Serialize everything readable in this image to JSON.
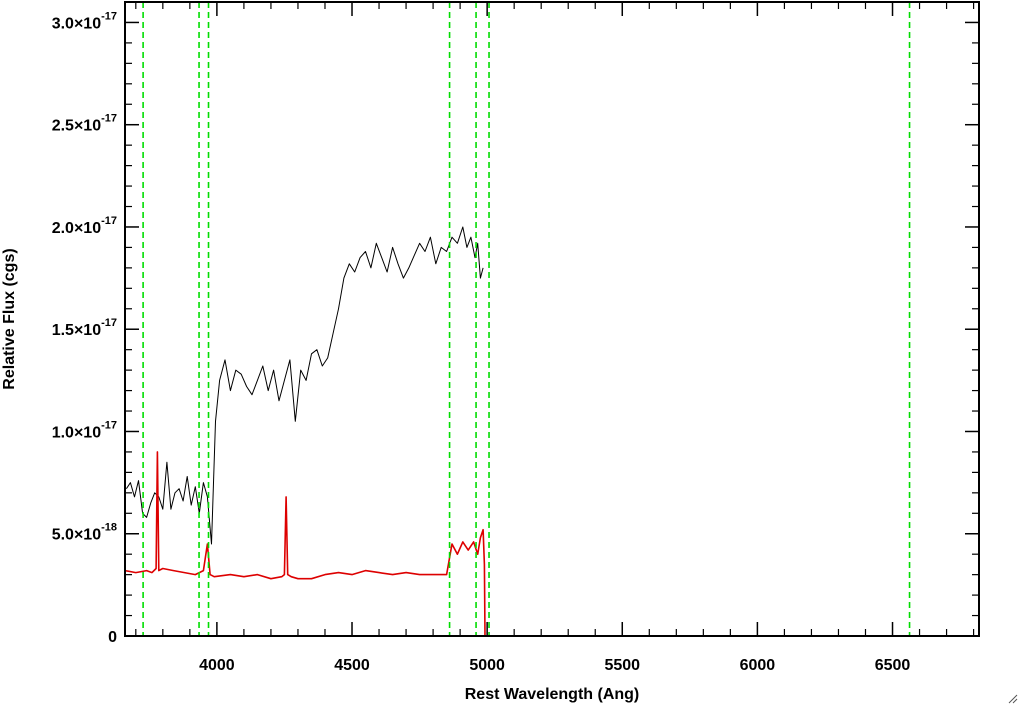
{
  "chart_data": {
    "type": "line",
    "xlabel": "Rest Wavelength (Ang)",
    "ylabel": "Relative Flux (cgs)",
    "xlim": [
      3660,
      6820
    ],
    "ylim": [
      0,
      3.1e-17
    ],
    "x_ticks": [
      {
        "value": 4000,
        "label": "4000"
      },
      {
        "value": 4500,
        "label": "4500"
      },
      {
        "value": 5000,
        "label": "5000"
      },
      {
        "value": 5500,
        "label": "5500"
      },
      {
        "value": 6000,
        "label": "6000"
      },
      {
        "value": 6500,
        "label": "6500"
      }
    ],
    "y_ticks": [
      {
        "value": 0,
        "mantissa": "0",
        "exponent": ""
      },
      {
        "value": 5e-18,
        "mantissa": "5.0×10",
        "exponent": "-18"
      },
      {
        "value": 1e-17,
        "mantissa": "1.0×10",
        "exponent": "-17"
      },
      {
        "value": 1.5e-17,
        "mantissa": "1.5×10",
        "exponent": "-17"
      },
      {
        "value": 2e-17,
        "mantissa": "2.0×10",
        "exponent": "-17"
      },
      {
        "value": 2.5e-17,
        "mantissa": "2.5×10",
        "exponent": "-17"
      },
      {
        "value": 3e-17,
        "mantissa": "3.0×10",
        "exponent": "-17"
      }
    ],
    "reference_lines": {
      "color": "#00dd00",
      "style": "dashed",
      "x": [
        3727,
        3934,
        3969,
        4861,
        4959,
        5007,
        6563
      ]
    },
    "series": [
      {
        "color": "#000000",
        "x": [
          3665,
          3680,
          3695,
          3710,
          3725,
          3740,
          3755,
          3770,
          3785,
          3800,
          3815,
          3830,
          3845,
          3860,
          3875,
          3890,
          3905,
          3920,
          3935,
          3950,
          3965,
          3980,
          3995,
          4010,
          4030,
          4050,
          4070,
          4090,
          4110,
          4130,
          4150,
          4170,
          4190,
          4210,
          4230,
          4250,
          4270,
          4290,
          4310,
          4330,
          4350,
          4370,
          4390,
          4410,
          4430,
          4450,
          4470,
          4490,
          4510,
          4530,
          4550,
          4570,
          4590,
          4610,
          4630,
          4650,
          4670,
          4690,
          4710,
          4730,
          4750,
          4770,
          4790,
          4810,
          4830,
          4850,
          4870,
          4890,
          4910,
          4925,
          4940,
          4955,
          4965,
          4975,
          4985
        ],
        "values": [
          7.2e-18,
          7.5e-18,
          6.8e-18,
          7.6e-18,
          6e-18,
          5.8e-18,
          6.5e-18,
          7e-18,
          6.8e-18,
          6.2e-18,
          8.5e-18,
          6.2e-18,
          7e-18,
          7.2e-18,
          6.6e-18,
          7.8e-18,
          6.4e-18,
          7.3e-18,
          6e-18,
          7.5e-18,
          6.8e-18,
          4.5e-18,
          1.05e-17,
          1.25e-17,
          1.35e-17,
          1.2e-17,
          1.3e-17,
          1.28e-17,
          1.22e-17,
          1.18e-17,
          1.25e-17,
          1.32e-17,
          1.2e-17,
          1.3e-17,
          1.15e-17,
          1.25e-17,
          1.35e-17,
          1.05e-17,
          1.3e-17,
          1.25e-17,
          1.38e-17,
          1.4e-17,
          1.32e-17,
          1.36e-17,
          1.48e-17,
          1.6e-17,
          1.75e-17,
          1.82e-17,
          1.78e-17,
          1.85e-17,
          1.88e-17,
          1.8e-17,
          1.92e-17,
          1.85e-17,
          1.78e-17,
          1.9e-17,
          1.82e-17,
          1.75e-17,
          1.8e-17,
          1.86e-17,
          1.92e-17,
          1.88e-17,
          1.95e-17,
          1.82e-17,
          1.9e-17,
          1.88e-17,
          1.95e-17,
          1.92e-17,
          2e-17,
          1.9e-17,
          1.95e-17,
          1.85e-17,
          1.92e-17,
          1.75e-17,
          1.8e-17
        ]
      },
      {
        "color": "#dd0000",
        "x": [
          3660,
          3700,
          3740,
          3760,
          3775,
          3780,
          3785,
          3800,
          3840,
          3880,
          3920,
          3950,
          3965,
          3975,
          3990,
          4050,
          4100,
          4150,
          4200,
          4240,
          4250,
          4256,
          4262,
          4275,
          4300,
          4350,
          4400,
          4450,
          4500,
          4550,
          4600,
          4650,
          4700,
          4750,
          4800,
          4850,
          4870,
          4890,
          4910,
          4930,
          4950,
          4965,
          4975,
          4985,
          4990,
          4992,
          5000,
          5500,
          6000,
          6500,
          6820
        ],
        "values": [
          3.2e-18,
          3.1e-18,
          3.2e-18,
          3.1e-18,
          3.3e-18,
          9e-18,
          3.2e-18,
          3.3e-18,
          3.2e-18,
          3.1e-18,
          3e-18,
          3.2e-18,
          4.5e-18,
          3e-18,
          2.9e-18,
          3e-18,
          2.9e-18,
          3e-18,
          2.8e-18,
          2.9e-18,
          3e-18,
          6.8e-18,
          3e-18,
          2.9e-18,
          2.8e-18,
          2.8e-18,
          3e-18,
          3.1e-18,
          3e-18,
          3.2e-18,
          3.1e-18,
          3e-18,
          3.1e-18,
          3e-18,
          3e-18,
          3e-18,
          4.5e-18,
          4e-18,
          4.6e-18,
          4.2e-18,
          4.6e-18,
          4e-18,
          4.8e-18,
          5.2e-18,
          3.5e-18,
          0,
          0,
          0,
          0,
          0,
          0
        ]
      }
    ]
  }
}
